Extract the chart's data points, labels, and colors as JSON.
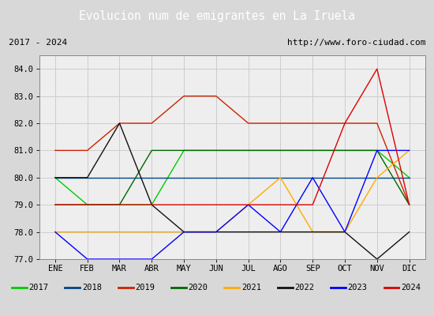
{
  "title": "Evolucion num de emigrantes en La Iruela",
  "subtitle_left": "2017 - 2024",
  "subtitle_right": "http://www.foro-ciudad.com",
  "months": [
    "ENE",
    "FEB",
    "MAR",
    "ABR",
    "MAY",
    "JUN",
    "JUL",
    "AGO",
    "SEP",
    "OCT",
    "NOV",
    "DIC"
  ],
  "ylim": [
    77.0,
    84.5
  ],
  "yticks": [
    77.0,
    78.0,
    79.0,
    80.0,
    81.0,
    82.0,
    83.0,
    84.0
  ],
  "series": {
    "2017": {
      "color": "#00cc00",
      "values": [
        80,
        79,
        79,
        79,
        81,
        81,
        81,
        81,
        81,
        81,
        81,
        80
      ]
    },
    "2018": {
      "color": "#004488",
      "values": [
        80,
        80,
        80,
        80,
        80,
        80,
        80,
        80,
        80,
        80,
        80,
        80
      ]
    },
    "2019": {
      "color": "#cc2200",
      "values": [
        81,
        81,
        82,
        82,
        83,
        83,
        82,
        82,
        82,
        82,
        82,
        79
      ]
    },
    "2020": {
      "color": "#006600",
      "values": [
        79,
        79,
        79,
        81,
        81,
        81,
        81,
        81,
        81,
        81,
        81,
        79
      ]
    },
    "2021": {
      "color": "#ffaa00",
      "values": [
        78,
        78,
        78,
        78,
        78,
        78,
        79,
        80,
        78,
        78,
        80,
        81
      ]
    },
    "2022": {
      "color": "#111111",
      "values": [
        80,
        80,
        82,
        79,
        78,
        78,
        78,
        78,
        78,
        78,
        77,
        78
      ]
    },
    "2023": {
      "color": "#0000ff",
      "values": [
        78,
        77,
        77,
        77,
        78,
        78,
        79,
        78,
        80,
        78,
        81,
        81
      ]
    },
    "2024": {
      "color": "#dd0000",
      "values": [
        79,
        79,
        79,
        79,
        79,
        79,
        79,
        79,
        79,
        82,
        84,
        79
      ]
    }
  },
  "title_bg_color": "#5588cc",
  "title_text_color": "#ffffff",
  "fig_bg_color": "#d8d8d8",
  "plot_bg_color": "#eeeeee",
  "grid_color": "#cccccc",
  "border_color": "#888888",
  "series_order": [
    "2017",
    "2018",
    "2019",
    "2020",
    "2021",
    "2022",
    "2023",
    "2024"
  ]
}
